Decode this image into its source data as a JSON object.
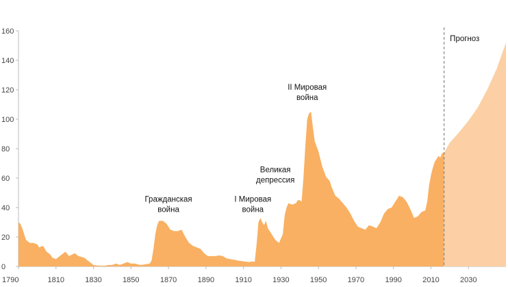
{
  "chart_data": {
    "type": "area",
    "title": "",
    "xlabel": "",
    "ylabel": "",
    "xlim": [
      1790,
      2050
    ],
    "ylim": [
      0,
      160
    ],
    "grid": false,
    "xticks": [
      1790,
      1810,
      1830,
      1850,
      1870,
      1890,
      1910,
      1930,
      1950,
      1970,
      1990,
      2010,
      2030
    ],
    "yticks": [
      0,
      20,
      40,
      60,
      80,
      100,
      120,
      140,
      160
    ],
    "forecast_start": 2017,
    "colors": {
      "historical": "#f9b062",
      "forecast": "#fcd0a4",
      "divider": "#888888"
    },
    "historical": [
      [
        1790,
        30
      ],
      [
        1791,
        29
      ],
      [
        1792,
        26
      ],
      [
        1794,
        18
      ],
      [
        1796,
        16
      ],
      [
        1798,
        16
      ],
      [
        1800,
        15
      ],
      [
        1801,
        13
      ],
      [
        1803,
        14
      ],
      [
        1805,
        10
      ],
      [
        1807,
        8
      ],
      [
        1808,
        6
      ],
      [
        1810,
        5
      ],
      [
        1812,
        7
      ],
      [
        1814,
        9
      ],
      [
        1815,
        10
      ],
      [
        1817,
        7
      ],
      [
        1820,
        9
      ],
      [
        1822,
        7
      ],
      [
        1825,
        6
      ],
      [
        1828,
        3
      ],
      [
        1830,
        1
      ],
      [
        1833,
        0.5
      ],
      [
        1836,
        0.5
      ],
      [
        1838,
        1
      ],
      [
        1840,
        1
      ],
      [
        1842,
        2
      ],
      [
        1844,
        1
      ],
      [
        1846,
        2
      ],
      [
        1848,
        3
      ],
      [
        1850,
        2
      ],
      [
        1852,
        2
      ],
      [
        1855,
        1
      ],
      [
        1858,
        1.5
      ],
      [
        1860,
        2
      ],
      [
        1861,
        4
      ],
      [
        1862,
        12
      ],
      [
        1863,
        22
      ],
      [
        1864,
        28
      ],
      [
        1865,
        31
      ],
      [
        1867,
        31
      ],
      [
        1869,
        29
      ],
      [
        1871,
        25
      ],
      [
        1873,
        24
      ],
      [
        1875,
        24
      ],
      [
        1877,
        25
      ],
      [
        1879,
        20
      ],
      [
        1881,
        16
      ],
      [
        1883,
        14
      ],
      [
        1885,
        13
      ],
      [
        1887,
        12
      ],
      [
        1889,
        9
      ],
      [
        1891,
        7
      ],
      [
        1893,
        7
      ],
      [
        1895,
        7
      ],
      [
        1897,
        7.5
      ],
      [
        1899,
        7
      ],
      [
        1901,
        5.5
      ],
      [
        1903,
        5
      ],
      [
        1905,
        4.5
      ],
      [
        1907,
        4
      ],
      [
        1910,
        3.5
      ],
      [
        1913,
        3
      ],
      [
        1915,
        3.5
      ],
      [
        1916,
        3
      ],
      [
        1917,
        15
      ],
      [
        1918,
        30
      ],
      [
        1919,
        33
      ],
      [
        1920,
        30
      ],
      [
        1921,
        28
      ],
      [
        1922,
        31
      ],
      [
        1923,
        26
      ],
      [
        1925,
        22
      ],
      [
        1927,
        18
      ],
      [
        1929,
        16
      ],
      [
        1931,
        22
      ],
      [
        1932,
        35
      ],
      [
        1933,
        40
      ],
      [
        1934,
        43
      ],
      [
        1936,
        42
      ],
      [
        1938,
        43
      ],
      [
        1939,
        45
      ],
      [
        1940,
        45
      ],
      [
        1941,
        44
      ],
      [
        1942,
        60
      ],
      [
        1943,
        82
      ],
      [
        1944,
        100
      ],
      [
        1945,
        104
      ],
      [
        1946,
        105
      ],
      [
        1947,
        95
      ],
      [
        1948,
        85
      ],
      [
        1950,
        78
      ],
      [
        1952,
        68
      ],
      [
        1954,
        61
      ],
      [
        1956,
        58
      ],
      [
        1957,
        54
      ],
      [
        1959,
        48
      ],
      [
        1961,
        46
      ],
      [
        1963,
        43
      ],
      [
        1965,
        40
      ],
      [
        1967,
        36
      ],
      [
        1969,
        31
      ],
      [
        1971,
        27
      ],
      [
        1973,
        26
      ],
      [
        1975,
        25
      ],
      [
        1977,
        28
      ],
      [
        1979,
        27
      ],
      [
        1981,
        26
      ],
      [
        1983,
        30
      ],
      [
        1985,
        36
      ],
      [
        1987,
        39
      ],
      [
        1989,
        40
      ],
      [
        1991,
        44
      ],
      [
        1993,
        48
      ],
      [
        1995,
        47
      ],
      [
        1997,
        44
      ],
      [
        1999,
        39
      ],
      [
        2001,
        33
      ],
      [
        2003,
        34
      ],
      [
        2005,
        37
      ],
      [
        2007,
        38
      ],
      [
        2008,
        44
      ],
      [
        2009,
        55
      ],
      [
        2010,
        62
      ],
      [
        2011,
        67
      ],
      [
        2012,
        71
      ],
      [
        2013,
        73
      ],
      [
        2014,
        75
      ],
      [
        2015,
        74
      ],
      [
        2016,
        77
      ],
      [
        2017,
        77
      ]
    ],
    "forecast": [
      [
        2017,
        77
      ],
      [
        2020,
        84
      ],
      [
        2025,
        91
      ],
      [
        2030,
        99
      ],
      [
        2035,
        108
      ],
      [
        2040,
        120
      ],
      [
        2045,
        134
      ],
      [
        2050,
        152
      ]
    ],
    "annotations": [
      {
        "lines": [
          "Гражданская",
          "война"
        ],
        "x": 1870,
        "y": 37
      },
      {
        "lines": [
          "I Мировая",
          "война"
        ],
        "x": 1915,
        "y": 37
      },
      {
        "lines": [
          "Великая",
          "депрессия"
        ],
        "x": 1927,
        "y": 57
      },
      {
        "lines": [
          "II Мировая",
          "война"
        ],
        "x": 1944,
        "y": 113
      },
      {
        "lines": [
          "Прогноз"
        ],
        "x": 2028,
        "y": 153
      }
    ]
  }
}
